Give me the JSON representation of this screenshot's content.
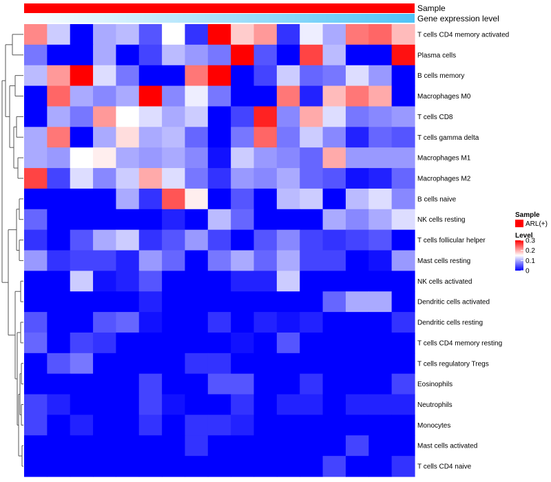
{
  "chart_data": {
    "type": "heatmap",
    "title": "",
    "annotation_tracks": [
      {
        "name": "Sample",
        "color": "#ff0000"
      },
      {
        "name": "Gene expression level",
        "colors": [
          "#ffffff",
          "#4fc3f7"
        ]
      }
    ],
    "rows": [
      "T cells CD4 memory activated",
      "Plasma cells",
      "B cells memory",
      "Macrophages M0",
      "T cells CD8",
      "T cells gamma delta",
      "Macrophages M1",
      "Macrophages M2",
      "B cells naive",
      "NK cells resting",
      "T cells follicular helper",
      "Mast cells resting",
      "NK cells activated",
      "Dendritic cells activated",
      "Dendritic cells resting",
      "T cells CD4 memory resting",
      "T cells regulatory  Tregs",
      "Eosinophils",
      "Neutrophils",
      "Monocytes",
      "Mast cells activated",
      "T cells CD4 naive"
    ],
    "n_columns": 17,
    "color_scale": {
      "min": 0,
      "mid": 0.15,
      "max": 0.3,
      "low_color": "#0000ff",
      "mid_color": "#ffffff",
      "high_color": "#ff0000"
    },
    "values": [
      [
        0.22,
        0.12,
        0.0,
        0.1,
        0.11,
        0.05,
        0.15,
        0.03,
        0.3,
        0.18,
        0.21,
        0.03,
        0.14,
        0.1,
        0.23,
        0.24,
        0.19
      ],
      [
        0.07,
        0.0,
        0.0,
        0.1,
        0.0,
        0.04,
        0.11,
        0.09,
        0.07,
        0.3,
        0.05,
        0.0,
        0.26,
        0.11,
        0.0,
        0.0,
        0.29
      ],
      [
        0.11,
        0.21,
        0.3,
        0.13,
        0.07,
        0.0,
        0.0,
        0.23,
        0.3,
        0.0,
        0.04,
        0.12,
        0.06,
        0.07,
        0.13,
        0.09,
        0.0
      ],
      [
        0.0,
        0.24,
        0.1,
        0.08,
        0.1,
        0.3,
        0.08,
        0.14,
        0.07,
        0.0,
        0.0,
        0.23,
        0.02,
        0.19,
        0.23,
        0.2,
        0.0
      ],
      [
        0.0,
        0.1,
        0.07,
        0.21,
        0.15,
        0.13,
        0.1,
        0.12,
        0.0,
        0.04,
        0.28,
        0.08,
        0.2,
        0.13,
        0.07,
        0.08,
        0.09
      ],
      [
        0.1,
        0.23,
        0.0,
        0.1,
        0.17,
        0.1,
        0.11,
        0.06,
        0.0,
        0.07,
        0.24,
        0.07,
        0.12,
        0.08,
        0.02,
        0.06,
        0.05
      ],
      [
        0.1,
        0.09,
        0.15,
        0.16,
        0.1,
        0.09,
        0.1,
        0.08,
        0.01,
        0.12,
        0.09,
        0.08,
        0.06,
        0.2,
        0.09,
        0.09,
        0.09
      ],
      [
        0.26,
        0.04,
        0.13,
        0.08,
        0.12,
        0.2,
        0.13,
        0.07,
        0.03,
        0.09,
        0.08,
        0.1,
        0.06,
        0.05,
        0.01,
        0.02,
        0.06
      ],
      [
        0.0,
        0.0,
        0.0,
        0.0,
        0.1,
        0.03,
        0.25,
        0.16,
        0.0,
        0.05,
        0.0,
        0.11,
        0.12,
        0.0,
        0.11,
        0.13,
        0.08
      ],
      [
        0.06,
        0.0,
        0.0,
        0.0,
        0.0,
        0.0,
        0.02,
        0.0,
        0.11,
        0.06,
        0.0,
        0.0,
        0.0,
        0.1,
        0.08,
        0.1,
        0.13
      ],
      [
        0.03,
        0.0,
        0.05,
        0.1,
        0.12,
        0.03,
        0.05,
        0.09,
        0.04,
        0.0,
        0.05,
        0.08,
        0.04,
        0.03,
        0.04,
        0.05,
        0.0
      ],
      [
        0.09,
        0.03,
        0.04,
        0.04,
        0.02,
        0.09,
        0.06,
        0.0,
        0.07,
        0.1,
        0.06,
        0.1,
        0.04,
        0.04,
        0.0,
        0.01,
        0.09
      ],
      [
        0.0,
        0.0,
        0.12,
        0.01,
        0.02,
        0.05,
        0.0,
        0.0,
        0.0,
        0.02,
        0.02,
        0.12,
        0.0,
        0.0,
        0.0,
        0.0,
        0.0
      ],
      [
        0.0,
        0.0,
        0.0,
        0.0,
        0.0,
        0.02,
        0.0,
        0.0,
        0.0,
        0.0,
        0.0,
        0.0,
        0.0,
        0.06,
        0.1,
        0.1,
        0.0
      ],
      [
        0.05,
        0.0,
        0.0,
        0.05,
        0.06,
        0.01,
        0.0,
        0.0,
        0.03,
        0.0,
        0.02,
        0.01,
        0.02,
        0.0,
        0.0,
        0.0,
        0.03
      ],
      [
        0.06,
        0.0,
        0.04,
        0.03,
        0.0,
        0.0,
        0.0,
        0.0,
        0.0,
        0.01,
        0.0,
        0.05,
        0.0,
        0.0,
        0.0,
        0.0,
        0.0
      ],
      [
        0.0,
        0.05,
        0.07,
        0.0,
        0.0,
        0.0,
        0.0,
        0.03,
        0.03,
        0.0,
        0.0,
        0.0,
        0.0,
        0.0,
        0.0,
        0.0,
        0.0
      ],
      [
        0.0,
        0.0,
        0.0,
        0.0,
        0.0,
        0.04,
        0.0,
        0.0,
        0.05,
        0.05,
        0.0,
        0.0,
        0.03,
        0.0,
        0.0,
        0.0,
        0.04
      ],
      [
        0.04,
        0.02,
        0.0,
        0.0,
        0.0,
        0.04,
        0.01,
        0.0,
        0.0,
        0.03,
        0.0,
        0.02,
        0.02,
        0.0,
        0.02,
        0.02,
        0.02
      ],
      [
        0.04,
        0.0,
        0.02,
        0.0,
        0.0,
        0.03,
        0.0,
        0.03,
        0.03,
        0.02,
        0.0,
        0.0,
        0.0,
        0.0,
        0.0,
        0.0,
        0.0
      ],
      [
        0.0,
        0.0,
        0.0,
        0.0,
        0.0,
        0.0,
        0.0,
        0.03,
        0.0,
        0.0,
        0.0,
        0.0,
        0.0,
        0.0,
        0.04,
        0.0,
        0.0
      ],
      [
        0.0,
        0.0,
        0.0,
        0.0,
        0.0,
        0.0,
        0.0,
        0.0,
        0.0,
        0.0,
        0.0,
        0.0,
        0.0,
        0.04,
        0.0,
        0.0,
        0.03
      ]
    ],
    "legend": {
      "sample_title": "Sample",
      "sample_entry": "ARL(+)",
      "sample_color": "#ff0000",
      "level_title": "Level",
      "level_ticks": [
        {
          "value": 0.3,
          "label": "0.3"
        },
        {
          "value": 0.2,
          "label": "0.2"
        },
        {
          "value": 0.1,
          "label": "0.1"
        },
        {
          "value": 0,
          "label": "0"
        }
      ]
    }
  }
}
